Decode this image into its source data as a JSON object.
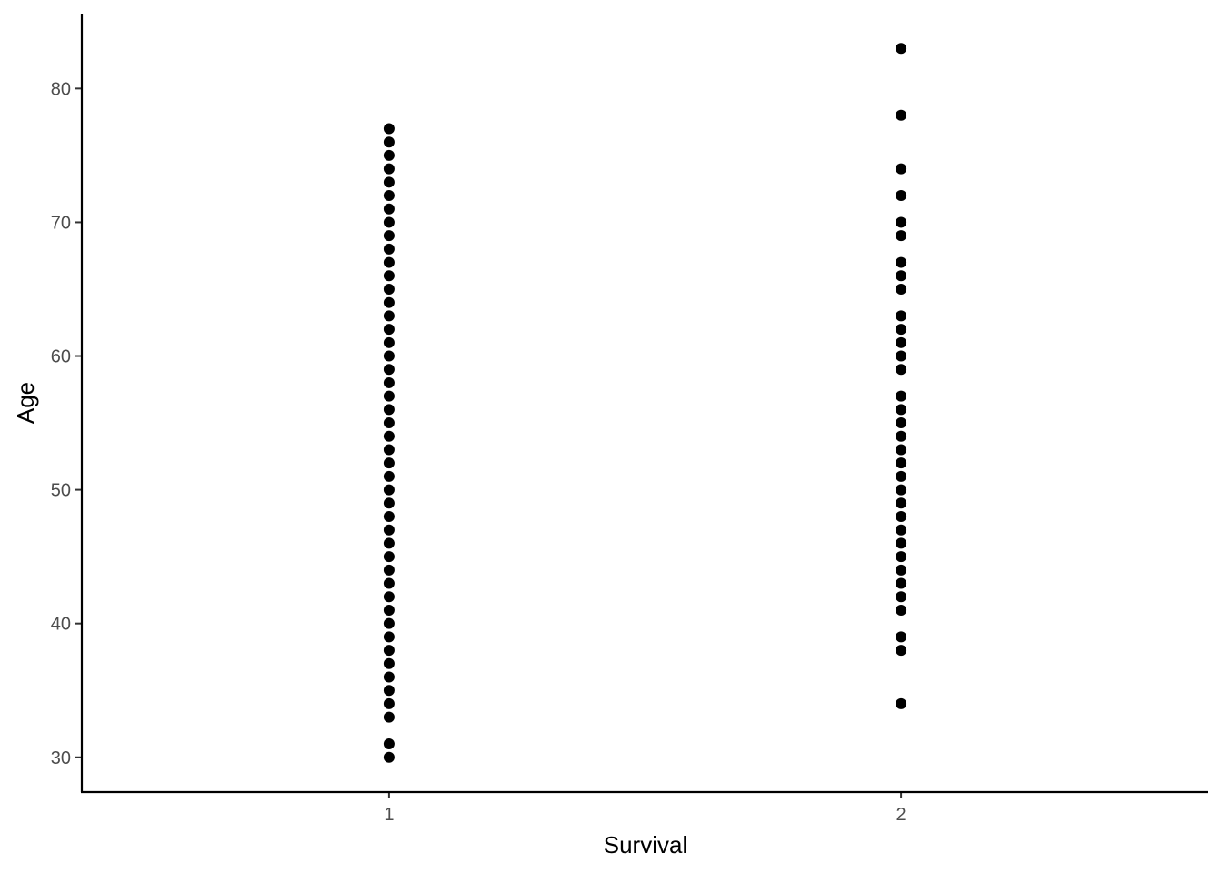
{
  "chart_data": {
    "type": "scatter",
    "title": "",
    "xlabel": "Survival",
    "ylabel": "Age",
    "x_ticks": [
      "1",
      "2"
    ],
    "y_ticks": [
      "30",
      "40",
      "50",
      "60",
      "70",
      "80"
    ],
    "xlim": [
      0.4,
      2.6
    ],
    "ylim": [
      27.4,
      85.6
    ],
    "grid": false,
    "legend": "none",
    "point_color": "#000000",
    "series": [
      {
        "x": 1,
        "y": [
          30,
          31,
          33,
          34,
          35,
          36,
          37,
          38,
          39,
          40,
          41,
          42,
          43,
          44,
          45,
          46,
          47,
          48,
          49,
          50,
          51,
          52,
          53,
          54,
          55,
          56,
          57,
          58,
          59,
          60,
          61,
          62,
          63,
          64,
          65,
          66,
          67,
          68,
          69,
          70,
          71,
          72,
          73,
          74,
          75,
          76,
          77
        ]
      },
      {
        "x": 2,
        "y": [
          34,
          38,
          39,
          41,
          42,
          43,
          44,
          45,
          46,
          47,
          48,
          49,
          50,
          51,
          52,
          53,
          54,
          55,
          56,
          57,
          59,
          60,
          61,
          62,
          63,
          65,
          66,
          67,
          69,
          70,
          72,
          74,
          78,
          83
        ]
      }
    ]
  }
}
